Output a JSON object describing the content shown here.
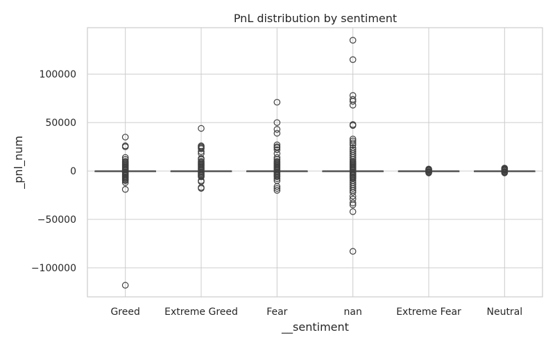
{
  "chart_data": {
    "type": "box",
    "title": "PnL distribution by sentiment",
    "xlabel": "__sentiment",
    "ylabel": "_pnl_num",
    "categories": [
      "Greed",
      "Extreme Greed",
      "Fear",
      "nan",
      "Extreme Fear",
      "Neutral"
    ],
    "ylim": [
      -130000,
      148000
    ],
    "yticks": [
      -100000,
      -50000,
      0,
      50000,
      100000
    ],
    "ytick_labels": [
      "−100000",
      "−50000",
      "0",
      "50000",
      "100000"
    ],
    "grid": true,
    "box_color": "#4c72b0",
    "series": [
      {
        "category": "Greed",
        "box": {
          "q1": -20,
          "median": 0,
          "q3": 30,
          "whisker_low": -80,
          "whisker_high": 100
        },
        "outliers": [
          35000,
          26000,
          25000,
          14000,
          12000,
          10000,
          9000,
          8000,
          7000,
          6000,
          5000,
          4000,
          3000,
          2000,
          1500,
          1000,
          -1000,
          -1500,
          -2000,
          -3000,
          -4000,
          -5000,
          -6000,
          -7000,
          -8000,
          -9000,
          -10000,
          -12000,
          -19000,
          -118000
        ]
      },
      {
        "category": "Extreme Greed",
        "box": {
          "q1": -20,
          "median": 0,
          "q3": 30,
          "whisker_low": -80,
          "whisker_high": 100
        },
        "outliers": [
          44000,
          26000,
          25000,
          24000,
          23000,
          20000,
          18000,
          13000,
          12000,
          10000,
          9000,
          8000,
          7000,
          6000,
          5000,
          4000,
          3000,
          2000,
          1000,
          -1000,
          -2000,
          -3000,
          -4000,
          -5000,
          -6000,
          -10000,
          -11000,
          -17000,
          -18000
        ]
      },
      {
        "category": "Fear",
        "box": {
          "q1": -20,
          "median": 0,
          "q3": 30,
          "whisker_low": -80,
          "whisker_high": 100
        },
        "outliers": [
          71000,
          50000,
          43000,
          39000,
          27000,
          25000,
          24000,
          22000,
          18000,
          14000,
          12000,
          10000,
          9000,
          8000,
          7000,
          6000,
          5000,
          4000,
          3000,
          2000,
          1000,
          -1000,
          -2000,
          -3000,
          -4000,
          -5000,
          -6000,
          -8000,
          -10000,
          -16000,
          -18000,
          -20000
        ]
      },
      {
        "category": "nan",
        "box": {
          "q1": -20,
          "median": 0,
          "q3": 30,
          "whisker_low": -80,
          "whisker_high": 100
        },
        "outliers": [
          135000,
          115000,
          78000,
          74000,
          72000,
          68000,
          48000,
          47000,
          33000,
          31000,
          29000,
          27000,
          24000,
          22000,
          20000,
          18000,
          16000,
          14000,
          12000,
          10000,
          9000,
          8000,
          7000,
          6000,
          5000,
          4000,
          3000,
          2000,
          1000,
          -1000,
          -2000,
          -3000,
          -4000,
          -5000,
          -6000,
          -7000,
          -8000,
          -10000,
          -12000,
          -14000,
          -16000,
          -18000,
          -20000,
          -22000,
          -26000,
          -29000,
          -33000,
          -35000,
          -42000,
          -83000
        ]
      },
      {
        "category": "Extreme Fear",
        "box": {
          "q1": -10,
          "median": 0,
          "q3": 15,
          "whisker_low": -40,
          "whisker_high": 50
        },
        "outliers": [
          2000,
          1500,
          1000,
          500,
          -500,
          -1000,
          -1500,
          -2000
        ]
      },
      {
        "category": "Neutral",
        "box": {
          "q1": -10,
          "median": 0,
          "q3": 15,
          "whisker_low": -40,
          "whisker_high": 50
        },
        "outliers": [
          3000,
          2500,
          2000,
          1500,
          1000,
          500,
          -500,
          -1000,
          -1500,
          -2000
        ]
      }
    ]
  }
}
